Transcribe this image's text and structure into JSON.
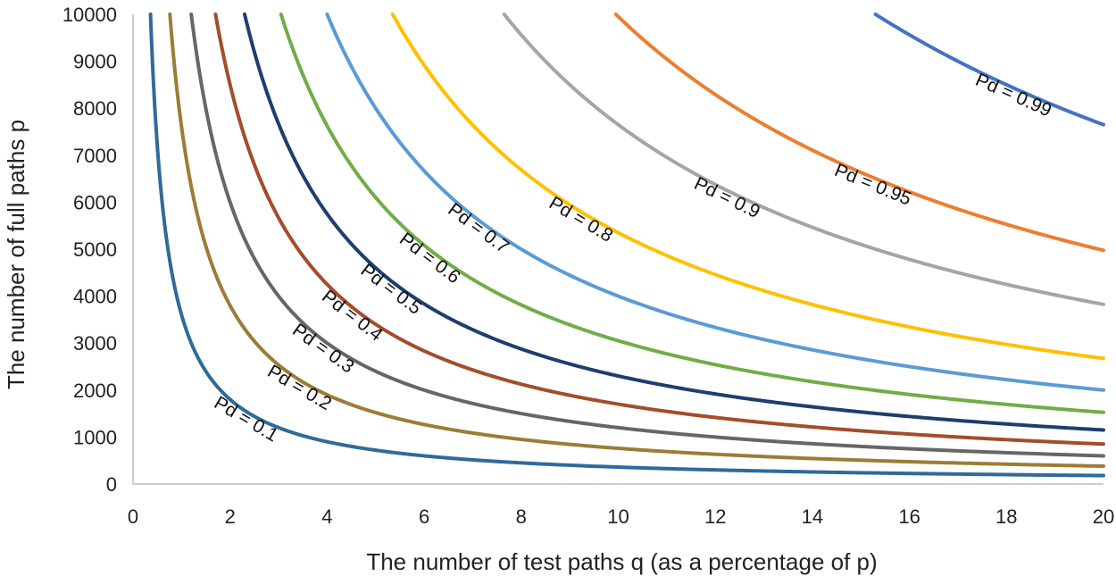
{
  "chart_data": {
    "type": "line",
    "title": "",
    "xlabel": "The number of test paths q (as a percentage of p)",
    "ylabel": "The number of full paths p",
    "xlim": [
      0,
      20
    ],
    "ylim": [
      0,
      10000
    ],
    "x_ticks": [
      0,
      2,
      4,
      6,
      8,
      10,
      12,
      14,
      16,
      18,
      20
    ],
    "y_ticks": [
      0,
      1000,
      2000,
      3000,
      4000,
      5000,
      6000,
      7000,
      8000,
      9000,
      10000
    ],
    "grid": false,
    "legend": "none",
    "curve_relation": "p = k / q",
    "series": [
      {
        "name": "Pd = 0.1",
        "label": "Pd = 0.1",
        "k": 3600,
        "color": "#2e6b99"
      },
      {
        "name": "Pd = 0.2",
        "label": "Pd = 0.2",
        "k": 7600,
        "color": "#9c7c36"
      },
      {
        "name": "Pd = 0.3",
        "label": "Pd = 0.3",
        "k": 12000,
        "color": "#666666"
      },
      {
        "name": "Pd = 0.4",
        "label": "Pd = 0.4",
        "k": 17000,
        "color": "#a34d2a"
      },
      {
        "name": "Pd = 0.5",
        "label": "Pd = 0.5",
        "k": 23000,
        "color": "#1f3d6e"
      },
      {
        "name": "Pd = 0.6",
        "label": "Pd = 0.6",
        "k": 30500,
        "color": "#70ad47"
      },
      {
        "name": "Pd = 0.7",
        "label": "Pd = 0.7",
        "k": 40000,
        "color": "#5b9bd5"
      },
      {
        "name": "Pd = 0.8",
        "label": "Pd = 0.8",
        "k": 53500,
        "color": "#ffc000"
      },
      {
        "name": "Pd = 0.9",
        "label": "Pd = 0.9",
        "k": 76500,
        "color": "#a5a5a5"
      },
      {
        "name": "Pd = 0.95",
        "label": "Pd = 0.95",
        "k": 99500,
        "color": "#ed7d31"
      },
      {
        "name": "Pd = 0.99",
        "label": "Pd = 0.99",
        "k": 153000,
        "color": "#4472c4"
      }
    ]
  }
}
